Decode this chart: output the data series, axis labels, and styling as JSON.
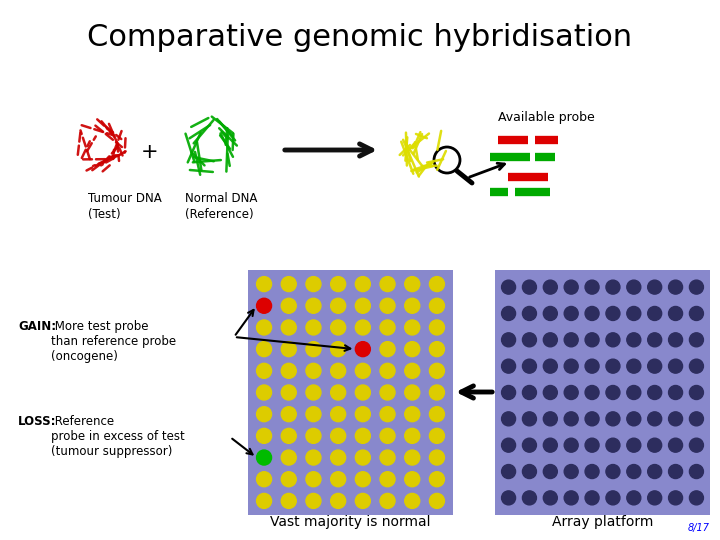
{
  "title": "Comparative genomic hybridisation",
  "title_fontsize": 22,
  "bg_color": "#ffffff",
  "tumour_label": "Tumour DNA\n(Test)",
  "normal_label": "Normal DNA\n(Reference)",
  "available_probe_label": "Available probe",
  "gain_label_bold": "GAIN:",
  "gain_label_rest": " More test probe\nthan reference probe\n(oncogene)",
  "loss_label_bold": "LOSS:",
  "loss_label_rest": " Reference\nprobe in excess of test\n(tumour suppressor)",
  "vast_majority_label": "Vast majority is normal",
  "array_platform_label": "Array platform",
  "page_num": "8/17",
  "dot_grid_rows": 11,
  "dot_grid_cols": 8,
  "array_grid_rows": 9,
  "array_grid_cols": 10,
  "yellow_dot_color": "#ddcc00",
  "red_dot_color": "#dd0000",
  "green_dot_color": "#00bb00",
  "dark_dot_color": "#2d2d5e",
  "panel_bg": "#8888cc",
  "tumour_color": "#cc0000",
  "normal_color": "#00aa00",
  "probe_color": "#dddd00",
  "red_bar_color": "#dd0000",
  "green_bar_color": "#00aa00",
  "arrow_color": "#111111"
}
